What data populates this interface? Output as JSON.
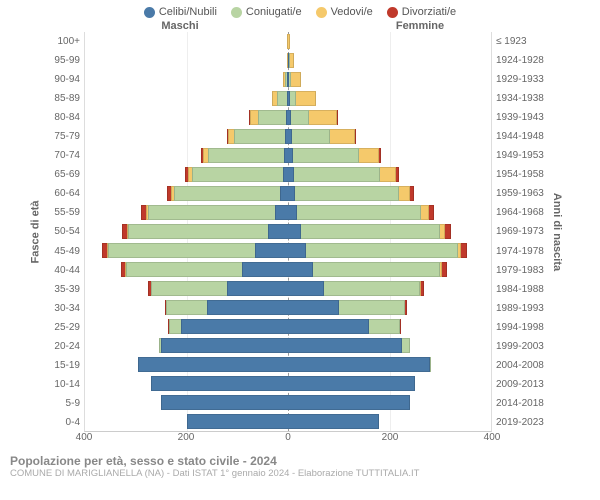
{
  "type": "population-pyramid",
  "colors": {
    "celibi": "#4a7aa8",
    "coniugati": "#b8d4a3",
    "vedovi": "#f5c96b",
    "divorziati": "#c0392b",
    "background": "#ffffff",
    "grid": "#eeeeee",
    "axis_text": "#666666",
    "center_line": "#999999"
  },
  "legend": [
    {
      "key": "celibi",
      "label": "Celibi/Nubili"
    },
    {
      "key": "coniugati",
      "label": "Coniugati/e"
    },
    {
      "key": "vedovi",
      "label": "Vedovi/e"
    },
    {
      "key": "divorziati",
      "label": "Divorziati/e"
    }
  ],
  "gender_labels": {
    "left": "Maschi",
    "right": "Femmine"
  },
  "y_left_title": "Fasce di età",
  "y_right_title": "Anni di nascita",
  "x_axis": {
    "max": 400,
    "ticks": [
      400,
      200,
      0,
      200,
      400
    ]
  },
  "footer": {
    "title": "Popolazione per età, sesso e stato civile - 2024",
    "subtitle": "COMUNE DI MARIGLIANELLA (NA) - Dati ISTAT 1° gennaio 2024 - Elaborazione TUTTITALIA.IT"
  },
  "rows": [
    {
      "age": "100+",
      "birth": "≤ 1923",
      "m": {
        "cel": 0,
        "con": 0,
        "ved": 1,
        "div": 0
      },
      "f": {
        "cel": 0,
        "con": 0,
        "ved": 3,
        "div": 0
      }
    },
    {
      "age": "95-99",
      "birth": "1924-1928",
      "m": {
        "cel": 0,
        "con": 0,
        "ved": 2,
        "div": 0
      },
      "f": {
        "cel": 1,
        "con": 1,
        "ved": 8,
        "div": 0
      }
    },
    {
      "age": "90-94",
      "birth": "1929-1933",
      "m": {
        "cel": 1,
        "con": 3,
        "ved": 4,
        "div": 0
      },
      "f": {
        "cel": 2,
        "con": 3,
        "ved": 20,
        "div": 0
      }
    },
    {
      "age": "85-89",
      "birth": "1934-1938",
      "m": {
        "cel": 2,
        "con": 20,
        "ved": 10,
        "div": 0
      },
      "f": {
        "cel": 4,
        "con": 12,
        "ved": 40,
        "div": 0
      }
    },
    {
      "age": "80-84",
      "birth": "1939-1943",
      "m": {
        "cel": 4,
        "con": 55,
        "ved": 15,
        "div": 1
      },
      "f": {
        "cel": 6,
        "con": 35,
        "ved": 55,
        "div": 1
      }
    },
    {
      "age": "75-79",
      "birth": "1944-1948",
      "m": {
        "cel": 6,
        "con": 100,
        "ved": 12,
        "div": 2
      },
      "f": {
        "cel": 8,
        "con": 75,
        "ved": 50,
        "div": 2
      }
    },
    {
      "age": "70-74",
      "birth": "1949-1953",
      "m": {
        "cel": 8,
        "con": 150,
        "ved": 10,
        "div": 4
      },
      "f": {
        "cel": 10,
        "con": 130,
        "ved": 40,
        "div": 4
      }
    },
    {
      "age": "65-69",
      "birth": "1954-1958",
      "m": {
        "cel": 10,
        "con": 180,
        "ved": 8,
        "div": 6
      },
      "f": {
        "cel": 12,
        "con": 170,
        "ved": 30,
        "div": 6
      }
    },
    {
      "age": "60-64",
      "birth": "1959-1963",
      "m": {
        "cel": 15,
        "con": 210,
        "ved": 5,
        "div": 8
      },
      "f": {
        "cel": 14,
        "con": 205,
        "ved": 22,
        "div": 7
      }
    },
    {
      "age": "55-59",
      "birth": "1964-1968",
      "m": {
        "cel": 25,
        "con": 250,
        "ved": 4,
        "div": 10
      },
      "f": {
        "cel": 18,
        "con": 245,
        "ved": 15,
        "div": 10
      }
    },
    {
      "age": "50-54",
      "birth": "1969-1973",
      "m": {
        "cel": 40,
        "con": 275,
        "ved": 3,
        "div": 10
      },
      "f": {
        "cel": 25,
        "con": 275,
        "ved": 10,
        "div": 12
      }
    },
    {
      "age": "45-49",
      "birth": "1974-1978",
      "m": {
        "cel": 65,
        "con": 290,
        "ved": 2,
        "div": 10
      },
      "f": {
        "cel": 35,
        "con": 300,
        "ved": 6,
        "div": 12
      }
    },
    {
      "age": "40-44",
      "birth": "1979-1983",
      "m": {
        "cel": 90,
        "con": 230,
        "ved": 1,
        "div": 8
      },
      "f": {
        "cel": 50,
        "con": 250,
        "ved": 3,
        "div": 10
      }
    },
    {
      "age": "35-39",
      "birth": "1984-1988",
      "m": {
        "cel": 120,
        "con": 150,
        "ved": 0,
        "div": 5
      },
      "f": {
        "cel": 70,
        "con": 190,
        "ved": 1,
        "div": 6
      }
    },
    {
      "age": "30-34",
      "birth": "1989-1993",
      "m": {
        "cel": 160,
        "con": 80,
        "ved": 0,
        "div": 3
      },
      "f": {
        "cel": 100,
        "con": 130,
        "ved": 0,
        "div": 4
      }
    },
    {
      "age": "25-29",
      "birth": "1994-1998",
      "m": {
        "cel": 210,
        "con": 25,
        "ved": 0,
        "div": 1
      },
      "f": {
        "cel": 160,
        "con": 60,
        "ved": 0,
        "div": 1
      }
    },
    {
      "age": "20-24",
      "birth": "1999-2003",
      "m": {
        "cel": 250,
        "con": 4,
        "ved": 0,
        "div": 0
      },
      "f": {
        "cel": 225,
        "con": 15,
        "ved": 0,
        "div": 0
      }
    },
    {
      "age": "15-19",
      "birth": "2004-2008",
      "m": {
        "cel": 295,
        "con": 0,
        "ved": 0,
        "div": 0
      },
      "f": {
        "cel": 280,
        "con": 1,
        "ved": 0,
        "div": 0
      }
    },
    {
      "age": "10-14",
      "birth": "2009-2013",
      "m": {
        "cel": 270,
        "con": 0,
        "ved": 0,
        "div": 0
      },
      "f": {
        "cel": 250,
        "con": 0,
        "ved": 0,
        "div": 0
      }
    },
    {
      "age": "5-9",
      "birth": "2014-2018",
      "m": {
        "cel": 250,
        "con": 0,
        "ved": 0,
        "div": 0
      },
      "f": {
        "cel": 240,
        "con": 0,
        "ved": 0,
        "div": 0
      }
    },
    {
      "age": "0-4",
      "birth": "2019-2023",
      "m": {
        "cel": 200,
        "con": 0,
        "ved": 0,
        "div": 0
      },
      "f": {
        "cel": 180,
        "con": 0,
        "ved": 0,
        "div": 0
      }
    }
  ],
  "fontsize": {
    "legend": 11,
    "axis": 10,
    "title": 12,
    "subtitle": 9.5
  }
}
